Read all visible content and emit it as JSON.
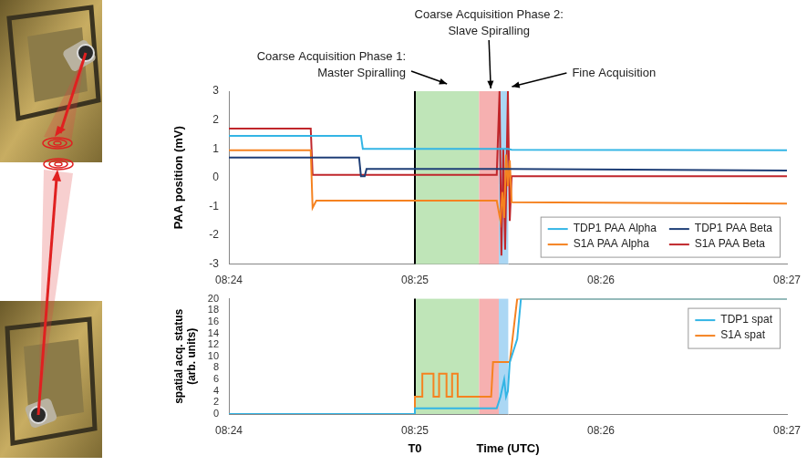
{
  "phases": [
    {
      "label": [
        "Coarse Acquisition Phase 1:",
        "Master Spiralling"
      ],
      "start": 505,
      "end": 505.345,
      "color": "#bfe5b8"
    },
    {
      "label": [
        "Coarse Acquisition Phase 2:",
        "Slave Spiralling"
      ],
      "start": 505.345,
      "end": 505.451,
      "color": "#f6b0b0"
    },
    {
      "label": [
        "Fine Acquisition"
      ],
      "start": 505.451,
      "end": 505.502,
      "color": "#abd7f4"
    }
  ],
  "t0": {
    "label": "T0",
    "x": 505
  },
  "chart_data": [
    {
      "type": "line",
      "ylabel": "PAA position (mV)",
      "xlim": [
        504,
        507
      ],
      "xticks": [
        {
          "value": 504,
          "label": "08:24"
        },
        {
          "value": 505,
          "label": "08:25"
        },
        {
          "value": 506,
          "label": "08:26"
        },
        {
          "value": 507,
          "label": "08:27"
        }
      ],
      "ylim": [
        -3,
        3
      ],
      "yticks": [
        -3,
        -2,
        -1,
        0,
        1,
        2,
        3
      ],
      "grid": false,
      "legend": "lower right",
      "series": [
        {
          "name": "TDP1 PAA Alpha",
          "color": "#33b5e5",
          "x": [
            504,
            504.71,
            504.72,
            505.5,
            505.52,
            507
          ],
          "values": [
            1.45,
            1.45,
            1.0,
            1.0,
            0.97,
            0.95
          ]
        },
        {
          "name": "TDP1 PAA Beta",
          "color": "#1f3f77",
          "x": [
            504,
            504.7,
            504.71,
            504.73,
            504.74,
            505.5,
            507
          ],
          "values": [
            0.7,
            0.7,
            0.05,
            0.05,
            0.3,
            0.3,
            0.25
          ]
        },
        {
          "name": "S1A PAA Alpha",
          "color": "#f58220",
          "x": [
            504,
            504.44,
            504.45,
            504.47,
            505.44,
            505.46,
            505.47,
            505.48,
            505.49,
            505.5,
            505.51,
            505.52,
            507
          ],
          "values": [
            0.95,
            0.95,
            -1.05,
            -0.8,
            -0.8,
            -1.5,
            -0.5,
            -1.4,
            0.8,
            -0.3,
            0.6,
            -0.85,
            -0.9
          ]
        },
        {
          "name": "S1A PAA Beta",
          "color": "#c0262b",
          "x": [
            504,
            504.44,
            504.45,
            505.44,
            505.455,
            505.465,
            505.475,
            505.485,
            505.5,
            505.51,
            505.52,
            507
          ],
          "values": [
            1.7,
            1.7,
            0.1,
            0.1,
            3,
            -2.7,
            1.0,
            -2.5,
            3,
            -1.5,
            0.05,
            0.05
          ]
        }
      ]
    },
    {
      "type": "line",
      "xlabel": "Time (UTC)",
      "ylabel": [
        "spatial acq. status",
        "(arb. units)"
      ],
      "xlim": [
        504,
        507
      ],
      "xticks": [
        {
          "value": 504,
          "label": "08:24"
        },
        {
          "value": 505,
          "label": "08:25"
        },
        {
          "value": 506,
          "label": "08:26"
        },
        {
          "value": 507,
          "label": "08:27"
        }
      ],
      "ylim": [
        0,
        20
      ],
      "yticks": [
        0,
        2,
        4,
        6,
        8,
        10,
        12,
        14,
        16,
        18,
        20
      ],
      "grid": false,
      "legend": "upper right",
      "series": [
        {
          "name": "TDP1 spat",
          "color": "#33b5e5",
          "x": [
            504,
            505,
            505,
            505.44,
            505.46,
            505.48,
            505.49,
            505.5,
            505.51,
            505.55,
            505.57,
            507
          ],
          "values": [
            0,
            0,
            1,
            1,
            3,
            6,
            3,
            4,
            9,
            13,
            20,
            20
          ]
        },
        {
          "name": "S1A spat",
          "color": "#f58220",
          "x": [
            504,
            505,
            505,
            505.04,
            505.04,
            505.1,
            505.1,
            505.13,
            505.13,
            505.17,
            505.17,
            505.2,
            505.2,
            505.23,
            505.23,
            505.41,
            505.42,
            505.51,
            505.55,
            507
          ],
          "values": [
            0,
            0,
            3,
            3,
            7,
            7,
            3,
            3,
            7,
            7,
            3,
            3,
            7,
            7,
            3,
            3,
            9,
            9,
            20,
            20
          ]
        }
      ]
    }
  ]
}
